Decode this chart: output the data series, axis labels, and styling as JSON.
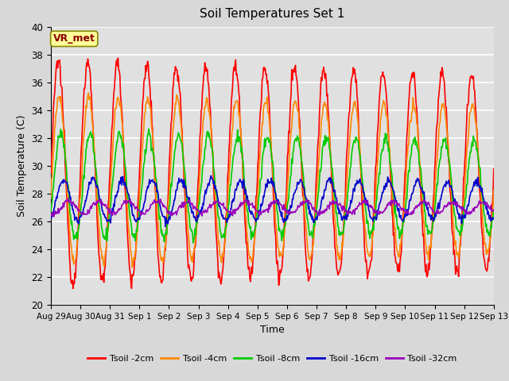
{
  "title": "Soil Temperatures Set 1",
  "xlabel": "Time",
  "ylabel": "Soil Temperature (C)",
  "ylim": [
    20,
    40
  ],
  "annotation": "VR_met",
  "background_color": "#e0e0e0",
  "grid_color": "#ffffff",
  "series_names": [
    "Tsoil -2cm",
    "Tsoil -4cm",
    "Tsoil -8cm",
    "Tsoil -16cm",
    "Tsoil -32cm"
  ],
  "series_colors": [
    "#ff0000",
    "#ff8800",
    "#00cc00",
    "#0000cc",
    "#9900bb"
  ],
  "series_lw": [
    1.2,
    1.2,
    1.2,
    1.2,
    1.2
  ],
  "series_params": {
    "Tsoil -2cm": {
      "mean": 29.5,
      "amp": 8.0,
      "phase": 0.0,
      "phase_drift": 0.0,
      "noise": 0.3
    },
    "Tsoil -4cm": {
      "mean": 29.0,
      "amp": 6.0,
      "phase": 0.2,
      "phase_drift": 0.0,
      "noise": 0.2
    },
    "Tsoil -8cm": {
      "mean": 28.5,
      "amp": 3.8,
      "phase": 0.5,
      "phase_drift": 0.0,
      "noise": 0.2
    },
    "Tsoil -16cm": {
      "mean": 27.5,
      "amp": 1.5,
      "phase": 1.1,
      "phase_drift": 0.0,
      "noise": 0.15
    },
    "Tsoil -32cm": {
      "mean": 27.0,
      "amp": 0.45,
      "phase": 2.3,
      "phase_drift": 0.0,
      "noise": 0.1
    }
  },
  "tick_labels": [
    "Aug 29",
    "Aug 30",
    "Aug 31",
    "Sep 1",
    "Sep 2",
    "Sep 3",
    "Sep 4",
    "Sep 5",
    "Sep 6",
    "Sep 7",
    "Sep 8",
    "Sep 9",
    "Sep 10",
    "Sep 11",
    "Sep 12",
    "Sep 13"
  ],
  "figsize": [
    6.4,
    4.8
  ],
  "dpi": 100
}
